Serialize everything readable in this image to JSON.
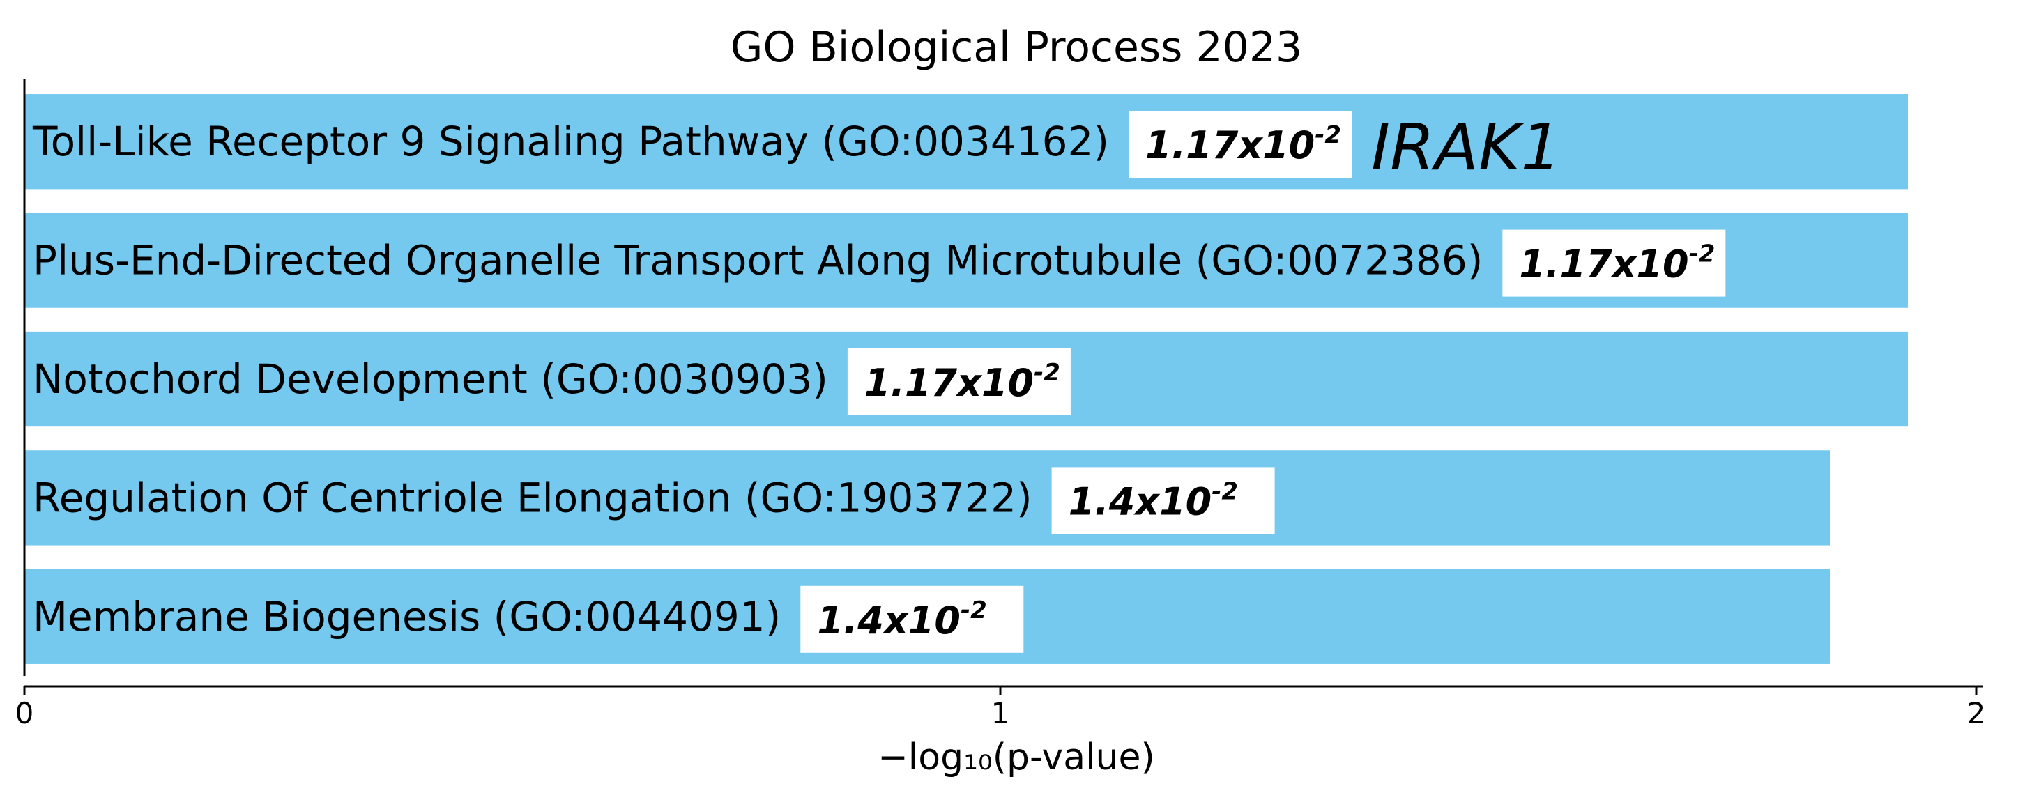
{
  "chart_data": {
    "type": "bar",
    "orientation": "horizontal",
    "title": "GO Biological Process 2023",
    "xlabel": "−log₁₀(p-value)",
    "xlim": [
      0,
      2
    ],
    "xticks": [
      "0",
      "1",
      "2"
    ],
    "grid": false,
    "bar_color": "#75c9ef",
    "categories": [
      "Toll-Like Receptor 9 Signaling Pathway (GO:0034162)",
      "Plus-End-Directed Organelle Transport Along Microtubule (GO:0072386)",
      "Notochord Development (GO:0030903)",
      "Regulation Of Centriole Elongation (GO:1903722)",
      "Membrane Biogenesis (GO:0044091)"
    ],
    "values": [
      1.93,
      1.93,
      1.93,
      1.85,
      1.85
    ],
    "pvalue_labels": [
      {
        "mantissa": "1.17x10",
        "exponent": "-2"
      },
      {
        "mantissa": "1.17x10",
        "exponent": "-2"
      },
      {
        "mantissa": "1.17x10",
        "exponent": "-2"
      },
      {
        "mantissa": "1.4x10",
        "exponent": "-2"
      },
      {
        "mantissa": "1.4x10",
        "exponent": "-2"
      }
    ],
    "gene_annotation": "IRAK1"
  }
}
